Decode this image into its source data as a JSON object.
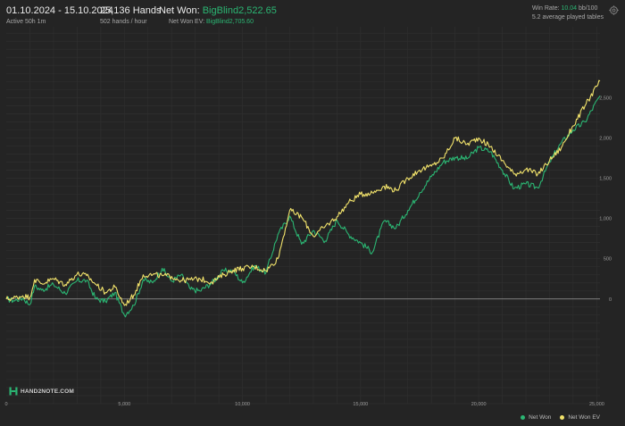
{
  "header": {
    "date_range": "01.10.2024 - 15.10.2024",
    "active": "Active 50h 1m",
    "hands": "25,136 Hands",
    "hands_rate": "502 hands / hour",
    "net_won_label": "Net Won: ",
    "net_won_value": "BigBlind2,522.65",
    "net_won_ev_label": "Net Won  EV: ",
    "net_won_ev_value": "BigBlind2,705.60",
    "win_rate_label": "Win Rate: ",
    "win_rate_value": "10.04",
    "win_rate_unit": " bb/100",
    "tables": "5.2 average played tables"
  },
  "watermark": "HAND2NOTE.COM",
  "icons": {
    "settings": "gear-icon",
    "logo": "hand2note-logo-icon"
  },
  "colors": {
    "net_won": "#2bb673",
    "net_won_ev": "#f2e36b",
    "background": "#242424"
  },
  "chart_data": {
    "type": "line",
    "title": "",
    "xlabel": "",
    "ylabel": "",
    "xlim": [
      0,
      25136
    ],
    "ylim": [
      -1300,
      3380
    ],
    "x_ticks": [
      0,
      5000,
      10000,
      15000,
      20000,
      25000
    ],
    "x_tick_labels": [
      "0",
      "5,000",
      "10,000",
      "15,000",
      "20,000",
      "25,000"
    ],
    "y_ticks": [
      0,
      500,
      1000,
      1500,
      2000,
      2500
    ],
    "y_tick_labels": [
      "0",
      "500",
      "1,000",
      "1,500",
      "2,000",
      "2,500"
    ],
    "grid": true,
    "legend_position": "bottom-right",
    "series": [
      {
        "name": "Net Won",
        "x": [
          0,
          300,
          700,
          1000,
          1200,
          1500,
          2000,
          2500,
          3000,
          3400,
          3800,
          4200,
          4600,
          5000,
          5400,
          5800,
          6200,
          6600,
          7000,
          7400,
          7800,
          8200,
          8700,
          9200,
          9600,
          10000,
          10500,
          11000,
          11500,
          12000,
          12500,
          13000,
          13500,
          14000,
          14500,
          15000,
          15500,
          16000,
          16500,
          17000,
          17500,
          18000,
          18500,
          19000,
          19500,
          20000,
          20500,
          21000,
          21500,
          22000,
          22500,
          23000,
          23500,
          24000,
          24500,
          25136
        ],
        "values": [
          0,
          -20,
          10,
          -70,
          160,
          110,
          180,
          70,
          230,
          230,
          0,
          -30,
          80,
          -200,
          -80,
          240,
          200,
          380,
          220,
          300,
          120,
          100,
          200,
          350,
          350,
          200,
          410,
          330,
          800,
          1030,
          680,
          850,
          720,
          980,
          800,
          700,
          580,
          970,
          880,
          1100,
          1320,
          1520,
          1700,
          1760,
          1740,
          1880,
          1830,
          1600,
          1370,
          1430,
          1380,
          1700,
          1940,
          2100,
          2200,
          2522.65
        ]
      },
      {
        "name": "Net Won  EV",
        "x": [
          0,
          300,
          700,
          1000,
          1200,
          1500,
          2000,
          2500,
          3000,
          3400,
          3800,
          4200,
          4600,
          5000,
          5400,
          5800,
          6200,
          6600,
          7000,
          7400,
          7800,
          8200,
          8700,
          9200,
          9600,
          10000,
          10500,
          11000,
          11500,
          12000,
          12500,
          13000,
          13500,
          14000,
          14500,
          15000,
          15500,
          16000,
          16500,
          17000,
          17500,
          18000,
          18500,
          19000,
          19500,
          20000,
          20500,
          21000,
          21500,
          22000,
          22500,
          23000,
          23500,
          24000,
          24500,
          25136
        ],
        "values": [
          0,
          10,
          40,
          20,
          240,
          190,
          250,
          180,
          310,
          290,
          180,
          80,
          150,
          -80,
          50,
          300,
          300,
          290,
          280,
          230,
          240,
          250,
          210,
          300,
          360,
          380,
          400,
          350,
          500,
          1100,
          1020,
          780,
          900,
          1020,
          1200,
          1300,
          1320,
          1400,
          1350,
          1500,
          1600,
          1650,
          1750,
          2000,
          1920,
          2000,
          1890,
          1720,
          1550,
          1610,
          1550,
          1720,
          1880,
          2150,
          2400,
          2705.6
        ]
      }
    ]
  },
  "legend": {
    "items": [
      "Net Won",
      "Net Won  EV"
    ]
  }
}
